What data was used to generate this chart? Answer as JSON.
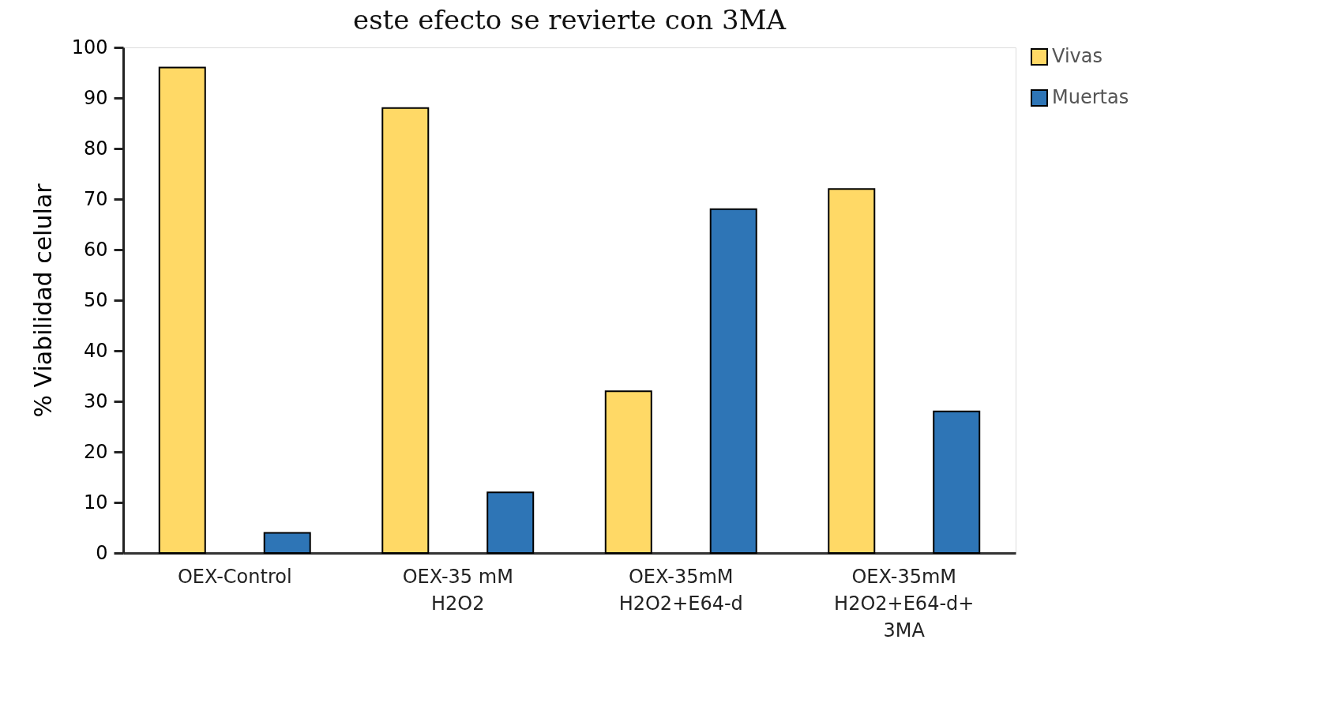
{
  "chart_data": {
    "type": "bar",
    "title": "este efecto se revierte con 3MA",
    "ylabel": "% Viabilidad celular",
    "categories": [
      "OEX-Control",
      "OEX-35 mM\nH2O2",
      "OEX-35mM\nH2O2+E64-d",
      "OEX-35mM\nH2O2+E64-d+\n3MA"
    ],
    "series": [
      {
        "name": "Vivas",
        "color": "#ffd966",
        "values": [
          96,
          88,
          32,
          72
        ]
      },
      {
        "name": "Muertas",
        "color": "#2e75b6",
        "values": [
          4,
          12,
          68,
          28
        ]
      }
    ],
    "ylim": [
      0,
      100
    ],
    "yticks": [
      0,
      10,
      20,
      30,
      40,
      50,
      60,
      70,
      80,
      90,
      100
    ],
    "grid": false,
    "legend": "right"
  }
}
